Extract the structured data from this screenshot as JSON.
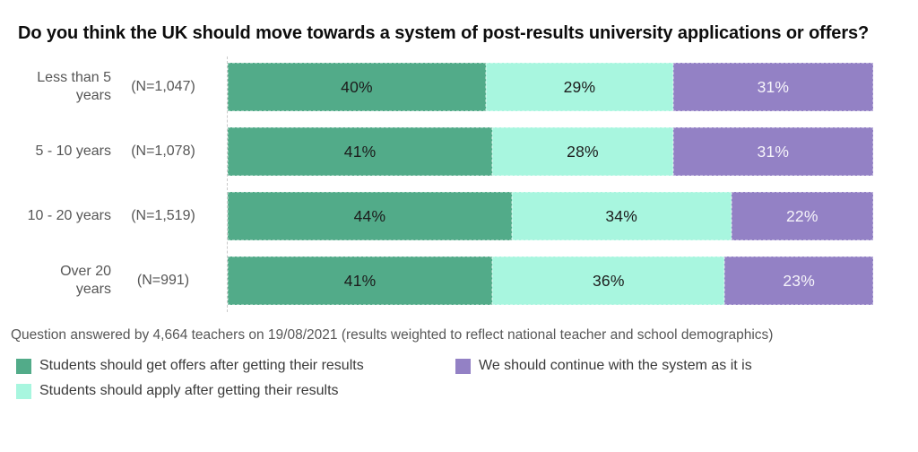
{
  "title": "Do you think the UK should move towards a system of post-results university applications or offers?",
  "footnote": "Question answered by 4,664 teachers on 19/08/2021 (results weighted to reflect national teacher and school demographics)",
  "chart_data": {
    "type": "bar",
    "variant": "stacked-horizontal",
    "value_suffix": "%",
    "xlim": [
      0,
      100
    ],
    "grid": false,
    "legend_position": "bottom",
    "categories": [
      "Less than 5\nyears",
      "5 - 10 years",
      "10 - 20 years",
      "Over 20\nyears"
    ],
    "sample_sizes": [
      "(N=1,047)",
      "(N=1,078)",
      "(N=1,519)",
      "(N=991)"
    ],
    "series": [
      {
        "name": "Students should get offers after getting their results",
        "color": "#52ab89",
        "label_color": "#1c1c1c",
        "values": [
          40,
          41,
          44,
          41
        ]
      },
      {
        "name": "Students should apply after getting their results",
        "color": "#a8f6df",
        "label_color": "#1c1c1c",
        "values": [
          29,
          28,
          34,
          36
        ]
      },
      {
        "name": "We should continue with the system as it is",
        "color": "#9381c5",
        "label_color": "#f6f4fa",
        "values": [
          31,
          31,
          22,
          23
        ]
      }
    ]
  }
}
